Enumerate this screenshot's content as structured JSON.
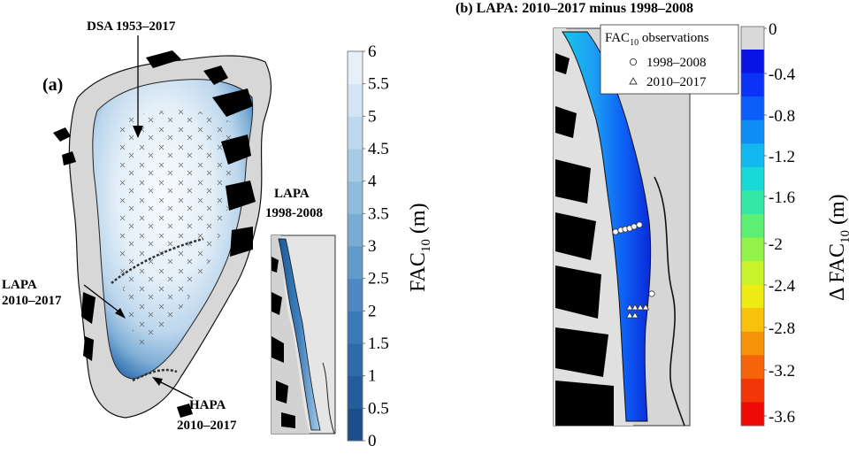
{
  "panel_a": {
    "label": "(a)",
    "annotations": {
      "dsa": "DSA 1953–2017",
      "lapa_line1": "LAPA",
      "lapa_line2": "2010–2017",
      "hapa_line1": "HAPA",
      "hapa_line2": "2010–2017"
    },
    "colorbar": {
      "label_main": "FAC",
      "label_sub": "10",
      "label_unit": " (m)",
      "ticks": [
        "0",
        "0.5",
        "1",
        "1.5",
        "2",
        "2.5",
        "3",
        "3.5",
        "4",
        "4.5",
        "5",
        "5.5",
        "6"
      ],
      "colors": [
        "#1b4f8a",
        "#245d99",
        "#2f6ba7",
        "#3b7ab5",
        "#4d89c0",
        "#629ac9",
        "#79abd3",
        "#90bcdc",
        "#a8cbe5",
        "#bed9ed",
        "#d3e5f4",
        "#e6f0f9"
      ]
    }
  },
  "inset": {
    "title_line1": "LAPA",
    "title_line2": "1998-2008"
  },
  "panel_b": {
    "title": "(b) LAPA: 2010–2017 minus 1998–2008",
    "legend": {
      "title_main": "FAC",
      "title_sub": "10",
      "title_rest": " observations",
      "items": [
        {
          "symbol": "circle",
          "label": "1998–2008"
        },
        {
          "symbol": "triangle",
          "label": "2010–2017"
        }
      ]
    },
    "colorbar": {
      "label_prefix": "Δ FAC",
      "label_sub": "10",
      "label_unit": " (m)",
      "ticks": [
        "0",
        "-0.4",
        "-0.8",
        "-1.2",
        "-1.6",
        "-2",
        "-2.4",
        "-2.8",
        "-3.2",
        "-3.6"
      ],
      "colors": [
        "#d9d9d9",
        "#0a14e6",
        "#0b32f5",
        "#0b5ff8",
        "#0f8cf5",
        "#12b8ef",
        "#18d9d6",
        "#34e7a6",
        "#5cef74",
        "#92f24a",
        "#c7f22c",
        "#eeea14",
        "#f7c10c",
        "#f7930a",
        "#f56409",
        "#f33607",
        "#ee0b05"
      ]
    }
  }
}
